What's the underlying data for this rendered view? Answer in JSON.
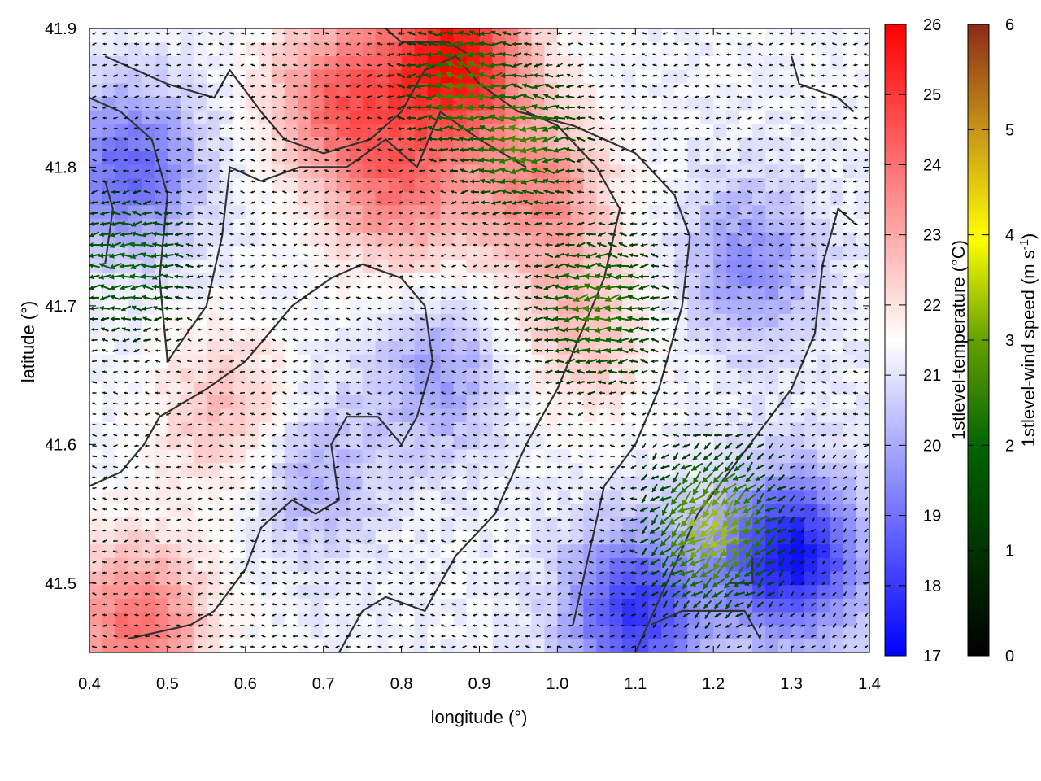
{
  "chart_data": {
    "type": "heatmap",
    "xlabel": "longitude (°)",
    "ylabel": "latitude (°)",
    "xlim": [
      0.4,
      1.4
    ],
    "ylim": [
      41.45,
      41.9
    ],
    "xticks": [
      "0.4",
      "0.5",
      "0.6",
      "0.7",
      "0.8",
      "0.9",
      "1.0",
      "1.1",
      "1.2",
      "1.3",
      "1.4"
    ],
    "yticks": [
      "41.5",
      "41.6",
      "41.7",
      "41.8",
      "41.9"
    ],
    "field": {
      "name": "1stlevel-temperature (°C)",
      "unit": "°C",
      "range": [
        17,
        26
      ],
      "ticks": [
        "17",
        "18",
        "19",
        "20",
        "21",
        "22",
        "23",
        "24",
        "25",
        "26"
      ],
      "colors": [
        "#0000ff",
        "#ffffff",
        "#ff0000"
      ],
      "warm_centers": [
        {
          "lon": 0.87,
          "lat": 41.88,
          "value": 25.8
        },
        {
          "lon": 0.72,
          "lat": 41.85,
          "value": 24.0
        },
        {
          "lon": 0.46,
          "lat": 41.47,
          "value": 24.0
        },
        {
          "lon": 0.98,
          "lat": 41.78,
          "value": 23.5
        },
        {
          "lon": 0.8,
          "lat": 41.78,
          "value": 23.5
        },
        {
          "lon": 0.58,
          "lat": 41.62,
          "value": 22.8
        },
        {
          "lon": 1.03,
          "lat": 41.68,
          "value": 22.6
        }
      ],
      "cold_centers": [
        {
          "lon": 1.3,
          "lat": 41.52,
          "value": 17.3
        },
        {
          "lon": 1.1,
          "lat": 41.48,
          "value": 18.0
        },
        {
          "lon": 0.45,
          "lat": 41.8,
          "value": 18.8
        },
        {
          "lon": 0.85,
          "lat": 41.65,
          "value": 19.8
        },
        {
          "lon": 1.25,
          "lat": 41.73,
          "value": 19.5
        },
        {
          "lon": 0.68,
          "lat": 41.58,
          "value": 20.0
        }
      ]
    },
    "vectors": {
      "name": "1stlevel-wind speed (m s-1)",
      "unit": "m s-1",
      "range": [
        0,
        6
      ],
      "ticks": [
        "0",
        "1",
        "2",
        "3",
        "4",
        "5",
        "6"
      ],
      "colors": [
        "#000000",
        "#006400",
        "#66a000",
        "#ffff00",
        "#c89619",
        "#8b2b1a"
      ],
      "jets": [
        {
          "lon": 1.05,
          "lat": 41.7,
          "speed": 2.4
        },
        {
          "lon": 0.95,
          "lat": 41.82,
          "speed": 2.5
        },
        {
          "lon": 1.2,
          "lat": 41.54,
          "speed": 3.3
        },
        {
          "lon": 0.45,
          "lat": 41.73,
          "speed": 2.0
        },
        {
          "lon": 0.88,
          "lat": 41.86,
          "speed": 2.5
        }
      ]
    },
    "grid": false,
    "legend": "colorbars-right"
  },
  "labels": {
    "temp_colorbar_title": "1stlevel-temperature (°C)",
    "wind_colorbar_title_main": "1stlevel-wind speed (m s",
    "wind_colorbar_title_sup": "-1",
    "wind_colorbar_title_end": ")"
  }
}
